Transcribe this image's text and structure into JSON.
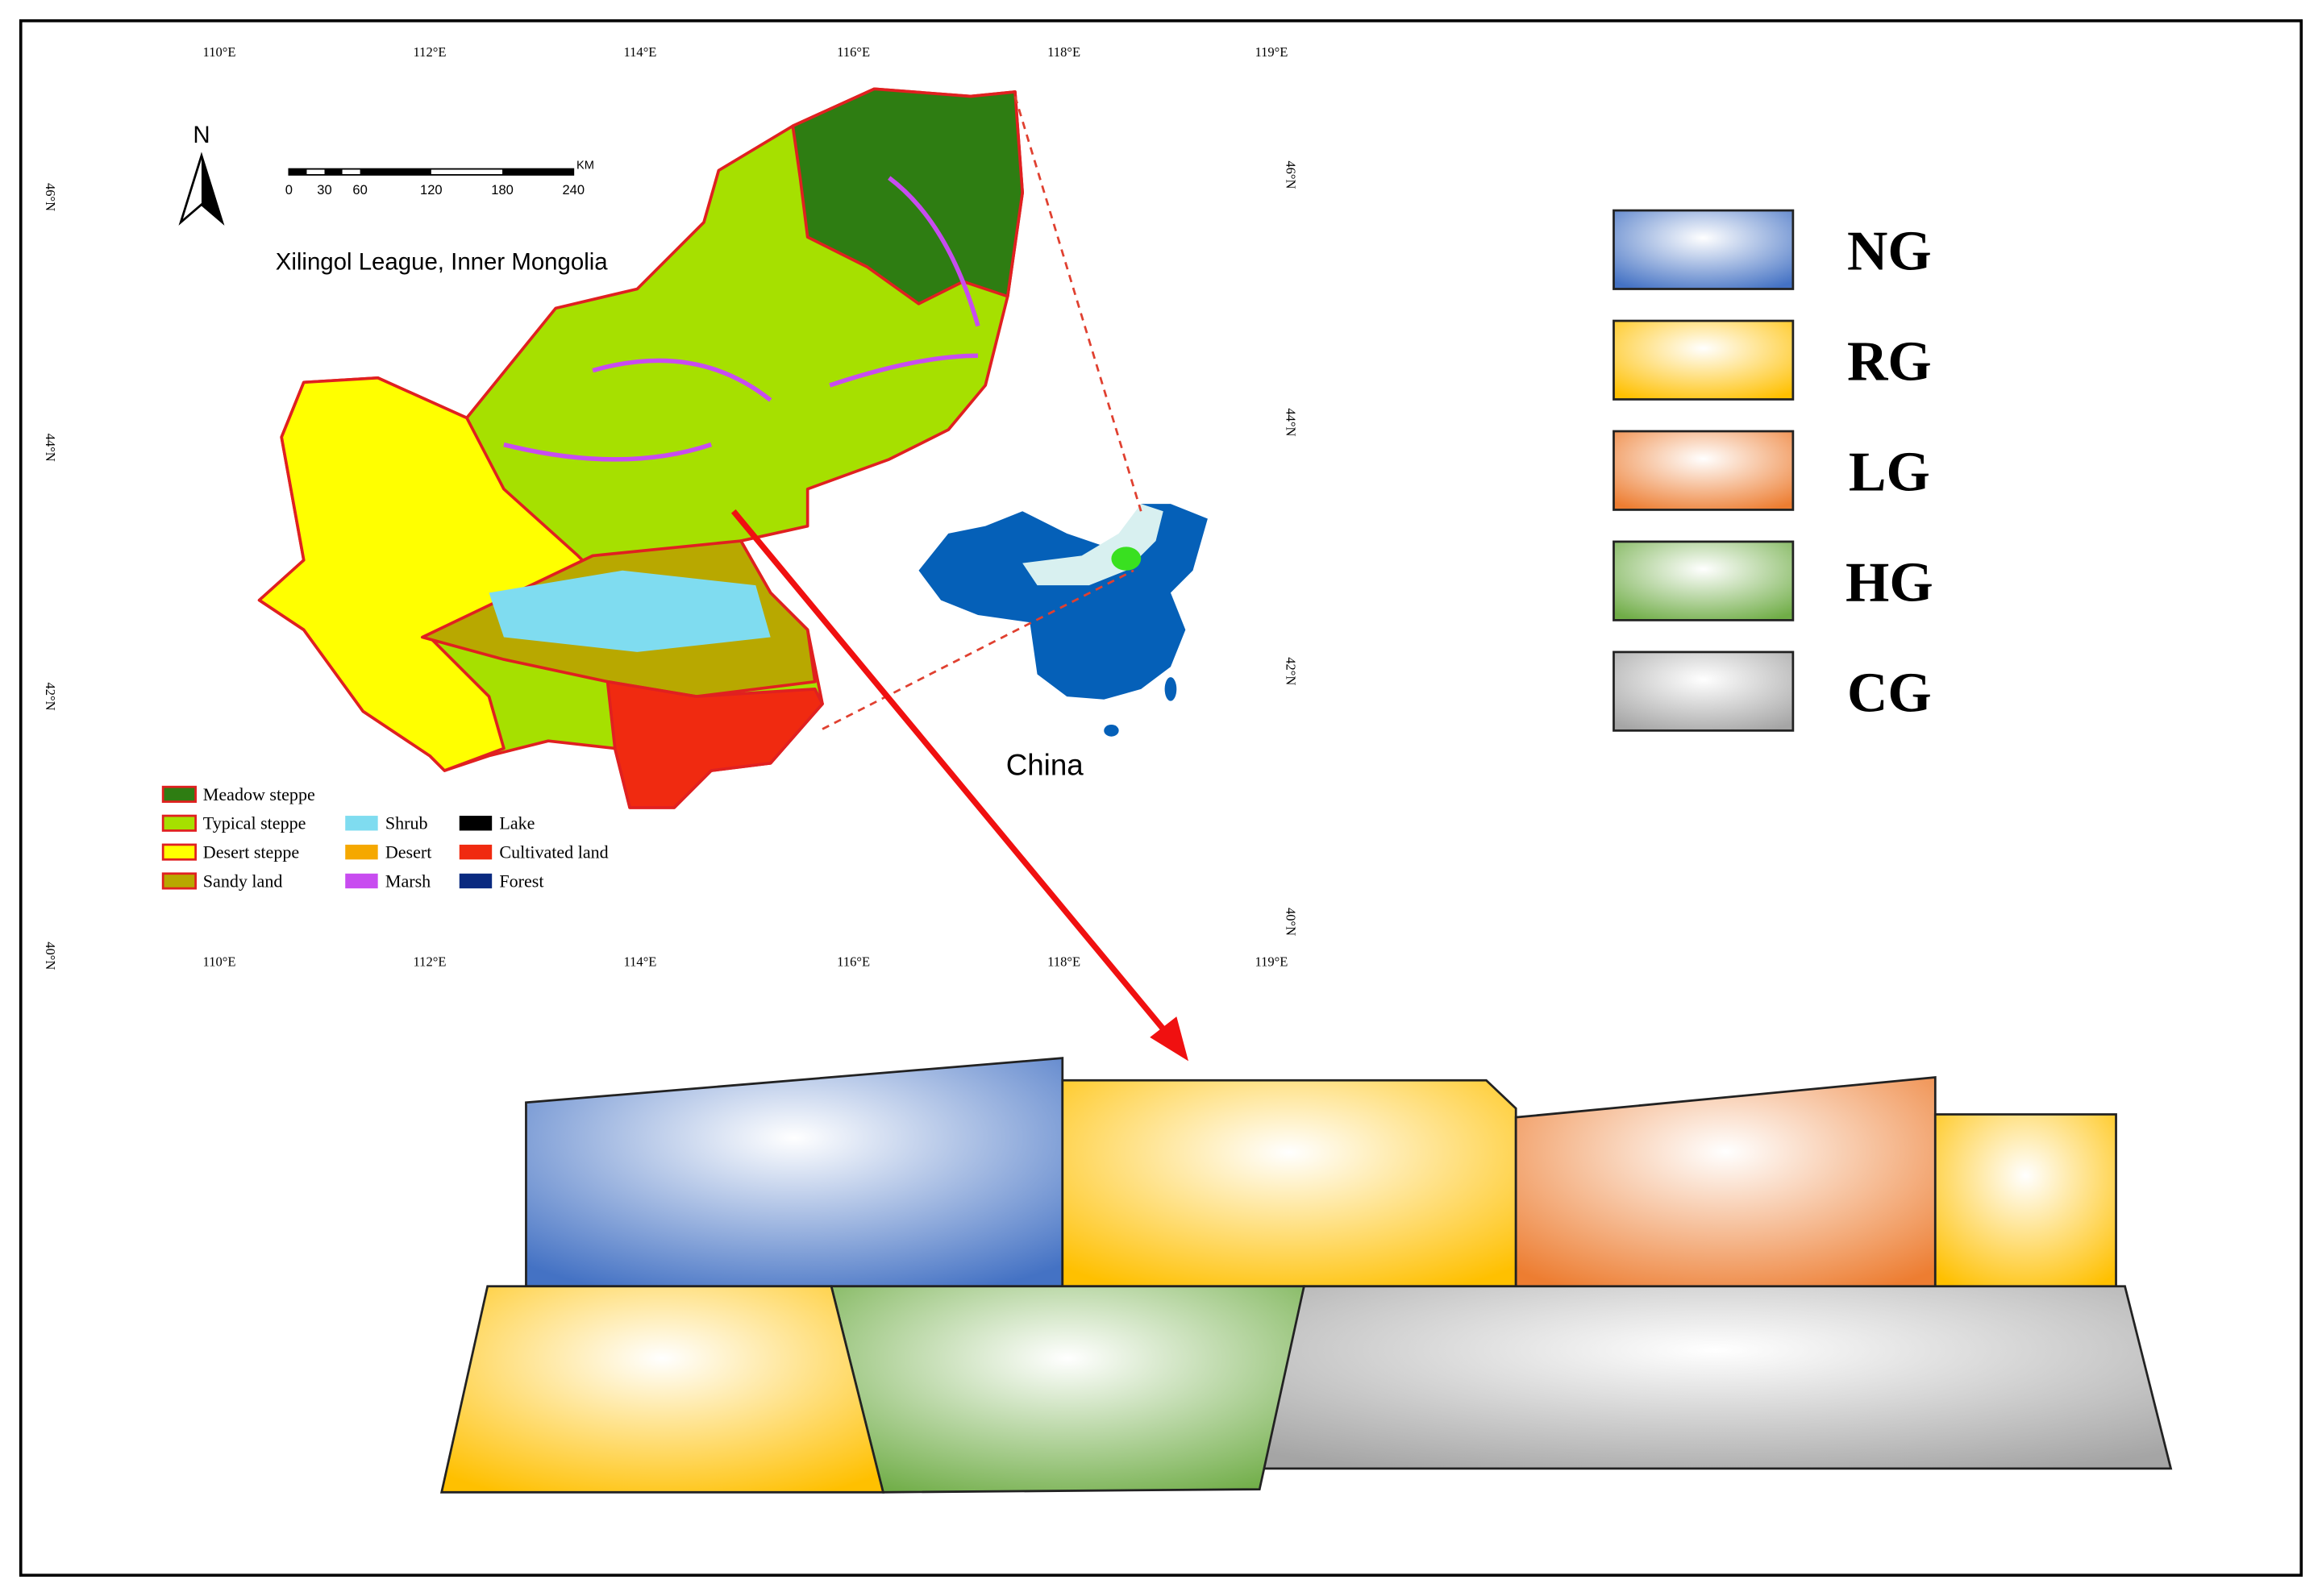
{
  "map": {
    "title": "Xilingol  League, Inner Mongolia",
    "north": "N",
    "china_label": "China",
    "lon_labels_top": [
      "110°E",
      "112°E",
      "114°E",
      "116°E",
      "118°E",
      "119°E"
    ],
    "lon_labels_bottom": [
      "110°E",
      "112°E",
      "114°E",
      "116°E",
      "118°E",
      "119°E"
    ],
    "lat_labels_left": [
      "46°N",
      "44°N",
      "42°N",
      "40°N"
    ],
    "lat_labels_right": [
      "46°N",
      "44°N",
      "42°N",
      "40°N"
    ],
    "scale_bar": {
      "unit": "KM",
      "labels": [
        "0",
        "30",
        "60",
        "120",
        "180",
        "240"
      ]
    },
    "land_legend": [
      {
        "label": "Meadow steppe",
        "color": "#2e7d12"
      },
      {
        "label": "Typical steppe",
        "color": "#a6e000"
      },
      {
        "label": "Desert steppe",
        "color": "#ffff00"
      },
      {
        "label": "Sandy land",
        "color": "#b8a800"
      },
      {
        "label": "Shrub",
        "color": "#7fdcf0"
      },
      {
        "label": "Desert",
        "color": "#f5a800"
      },
      {
        "label": "Marsh",
        "color": "#c84cf0"
      },
      {
        "label": "Lake",
        "color": "#000000"
      },
      {
        "label": "Cultivated land",
        "color": "#f02a10"
      },
      {
        "label": "Forest",
        "color": "#0a2a80"
      }
    ]
  },
  "grassland_legend": [
    {
      "label": "NG",
      "color": "#4472c4"
    },
    {
      "label": "RG",
      "color": "#ffc000"
    },
    {
      "label": "LG",
      "color": "#ed7d31"
    },
    {
      "label": "HG",
      "color": "#70ad47"
    },
    {
      "label": "CG",
      "color": "#a5a5a5"
    }
  ]
}
